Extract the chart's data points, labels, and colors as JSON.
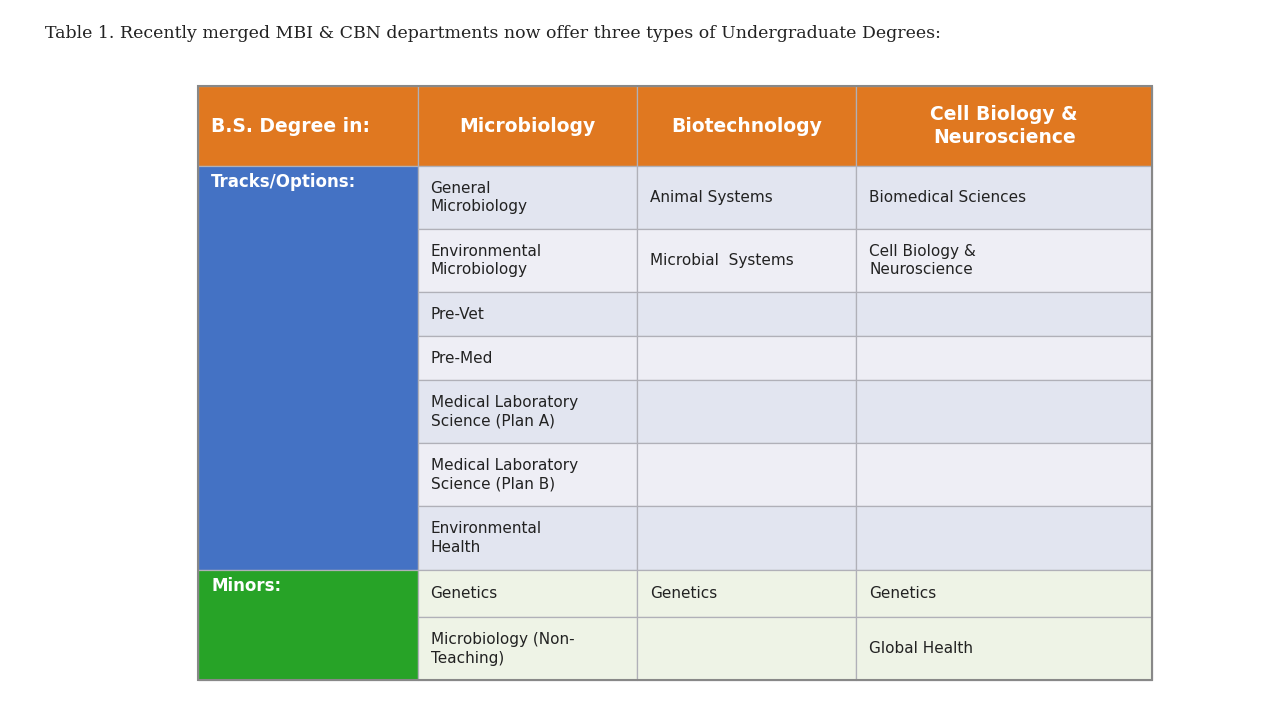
{
  "title": "Table 1. Recently merged MBI & CBN departments now offer three types of Undergraduate Degrees:",
  "title_fontsize": 12.5,
  "title_color": "#222222",
  "bg_color": "#ffffff",
  "header_row": {
    "col0": {
      "text": "B.S. Degree in:",
      "bg": "#E07820",
      "fg": "#ffffff",
      "bold": true
    },
    "col1": {
      "text": "Microbiology",
      "bg": "#E07820",
      "fg": "#ffffff",
      "bold": true
    },
    "col2": {
      "text": "Biotechnology",
      "bg": "#E07820",
      "fg": "#ffffff",
      "bold": true
    },
    "col3": {
      "text": "Cell Biology &\nNeuroscience",
      "bg": "#E07820",
      "fg": "#ffffff",
      "bold": true
    }
  },
  "section_tracks": {
    "label": {
      "text": "Tracks/Options:",
      "bg": "#4472C4",
      "fg": "#ffffff",
      "bold": true
    },
    "rows": [
      {
        "col1": "General\nMicrobiology",
        "col2": "Animal Systems",
        "col3": "Biomedical Sciences",
        "row_bg": "#E2E5F0"
      },
      {
        "col1": "Environmental\nMicrobiology",
        "col2": "Microbial  Systems",
        "col3": "Cell Biology &\nNeuroscience",
        "row_bg": "#eeeef5"
      },
      {
        "col1": "Pre-Vet",
        "col2": "",
        "col3": "",
        "row_bg": "#E2E5F0"
      },
      {
        "col1": "Pre-Med",
        "col2": "",
        "col3": "",
        "row_bg": "#eeeef5"
      },
      {
        "col1": "Medical Laboratory\nScience (Plan A)",
        "col2": "",
        "col3": "",
        "row_bg": "#E2E5F0"
      },
      {
        "col1": "Medical Laboratory\nScience (Plan B)",
        "col2": "",
        "col3": "",
        "row_bg": "#eeeef5"
      },
      {
        "col1": "Environmental\nHealth",
        "col2": "",
        "col3": "",
        "row_bg": "#E2E5F0"
      }
    ]
  },
  "section_minors": {
    "label": {
      "text": "Minors:",
      "bg": "#27A327",
      "fg": "#ffffff",
      "bold": true
    },
    "rows": [
      {
        "col1": "Genetics",
        "col2": "Genetics",
        "col3": "Genetics",
        "row_bg": "#EEF3E6"
      },
      {
        "col1": "Microbiology (Non-\nTeaching)",
        "col2": "",
        "col3": "Global Health",
        "row_bg": "#EEF3E6"
      }
    ]
  },
  "border_color": "#b0b0b8",
  "text_color": "#222222",
  "cell_fontsize": 11.0,
  "header_fontsize": 13.5,
  "label_fontsize": 12.0
}
